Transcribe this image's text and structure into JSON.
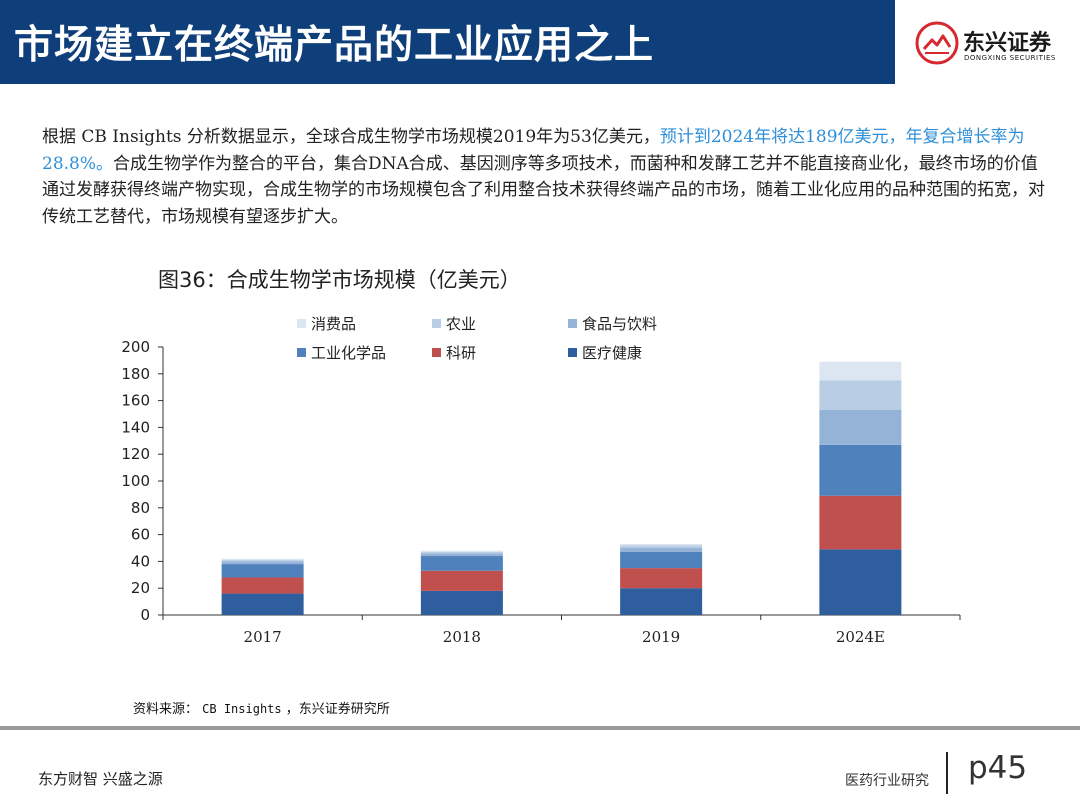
{
  "header": {
    "title": "市场建立在终端产品的工业应用之上",
    "logo_name": "东兴证券",
    "logo_en": "DONGXING SECURITIES",
    "header_color": "#0f3f7a",
    "logo_color": "#d7282f"
  },
  "paragraph": {
    "part1": "根据 CB Insights 分析数据显示，全球合成生物学市场规模2019年为53亿美元，",
    "highlight": "预计到2024年将达189亿美元，年复合增长率为28.8%。",
    "part2": "合成生物学作为整合的平台，集合DNA合成、基因测序等多项技术，而菌种和发酵工艺并不能直接商业化，最终市场的价值通过发酵获得终端产物实现，合成生物学的市场规模包含了利用整合技术获得终端产品的市场，随着工业化应用的品种范围的拓宽，对传统工艺替代，市场规模有望逐步扩大。",
    "highlight_color": "#2e8fd8"
  },
  "figure_title": "图36：合成生物学市场规模（亿美元）",
  "source": {
    "label": "资料来源：",
    "origin": "CB Insights",
    "suffix": "，东兴证券研究所"
  },
  "footer": {
    "slogan": "东方财智  兴盛之源",
    "section": "医药行业研究",
    "page": "p45"
  },
  "chart_data": {
    "type": "bar",
    "stacked": true,
    "title": "合成生物学市场规模（亿美元）",
    "categories": [
      "2017",
      "2018",
      "2019",
      "2024E"
    ],
    "ylim": [
      0,
      200
    ],
    "yticks": [
      0,
      20,
      40,
      60,
      80,
      100,
      120,
      140,
      160,
      180,
      200
    ],
    "xlabel": "",
    "ylabel": "",
    "grid": false,
    "legend_position": "top",
    "series": [
      {
        "name": "医疗健康",
        "color": "#2f5e9e",
        "values": [
          16,
          18,
          20,
          49
        ]
      },
      {
        "name": "科研",
        "color": "#c0504d",
        "values": [
          12,
          15,
          15,
          40
        ]
      },
      {
        "name": "工业化学品",
        "color": "#4f81bd",
        "values": [
          10,
          11,
          12,
          38
        ]
      },
      {
        "name": "食品与饮料",
        "color": "#95b3d7",
        "values": [
          2,
          2,
          3,
          26
        ]
      },
      {
        "name": "农业",
        "color": "#b9cde5",
        "values": [
          1,
          1,
          2,
          22
        ]
      },
      {
        "name": "消费品",
        "color": "#dce6f2",
        "values": [
          1,
          1,
          1,
          14
        ]
      }
    ]
  }
}
